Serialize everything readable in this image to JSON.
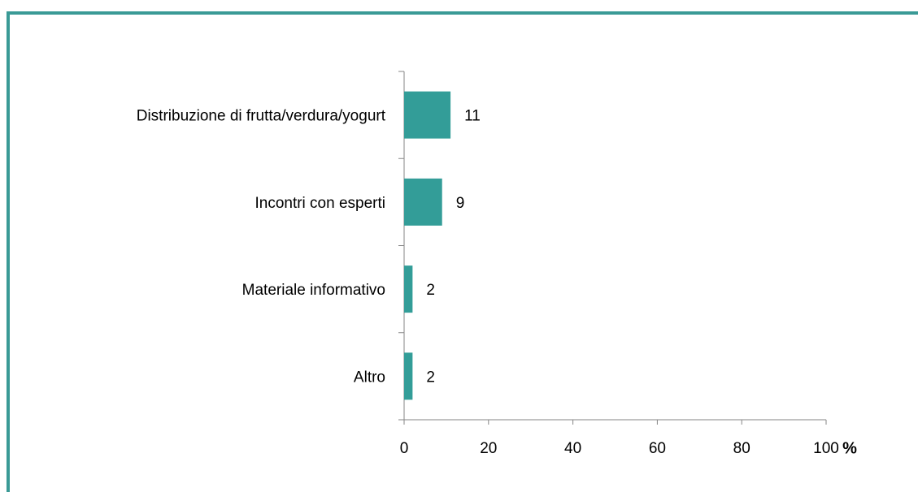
{
  "chart_data": {
    "type": "bar",
    "orientation": "horizontal",
    "categories": [
      "Distribuzione di frutta/verdura/yogurt",
      "Incontri con esperti",
      "Materiale informativo",
      "Altro"
    ],
    "values": [
      11,
      9,
      2,
      2
    ],
    "color": "#339d98",
    "xlim": [
      0,
      100
    ],
    "xticks": [
      0,
      20,
      40,
      60,
      80,
      100
    ],
    "xlabel": "%"
  }
}
